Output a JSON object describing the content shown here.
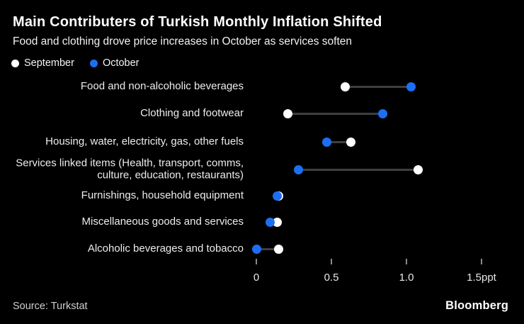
{
  "title": "Main Contributers of Turkish Monthly Inflation Shifted",
  "subtitle": "Food and clothing drove price increases in October as services soften",
  "legend": [
    {
      "label": "September",
      "color": "#ffffff"
    },
    {
      "label": "October",
      "color": "#1c6ff2"
    }
  ],
  "source": "Source: Turkstat",
  "brand": "Bloomberg",
  "colors": {
    "background": "#000000",
    "september_dot": "#ffffff",
    "october_dot": "#1c6ff2",
    "connector": "#3f3f3f",
    "tick_mark": "#8a8a8a",
    "text": "#ffffff"
  },
  "chart_data": {
    "type": "scatter",
    "subtype": "dumbbell-dot-plot",
    "title": "Main Contributers of Turkish Monthly Inflation Shifted",
    "subtitle": "Food and clothing drove price increases in October as services soften",
    "unit": "ppt",
    "categories": [
      "Food and non-alcoholic beverages",
      "Clothing and footwear",
      "Housing, water, electricity, gas, other fuels",
      "Services linked items (Health, transport, comms, culture, education, restaurants)",
      "Furnishings, household equipment",
      "Miscellaneous goods and services",
      "Alcoholic beverages and tobacco"
    ],
    "series": [
      {
        "name": "September",
        "color": "#ffffff",
        "values": [
          0.59,
          0.21,
          0.63,
          1.08,
          0.15,
          0.14,
          0.15
        ]
      },
      {
        "name": "October",
        "color": "#1c6ff2",
        "values": [
          1.03,
          0.84,
          0.47,
          0.28,
          0.14,
          0.09,
          0.0
        ]
      }
    ],
    "x_axis": {
      "ticks": [
        0,
        0.5,
        1.0,
        1.5
      ],
      "tick_labels": [
        "0",
        "0.5",
        "1.0",
        "1.5ppt"
      ],
      "range": [
        -0.06,
        1.78
      ],
      "grid": false
    },
    "legend_position": "top-left"
  }
}
